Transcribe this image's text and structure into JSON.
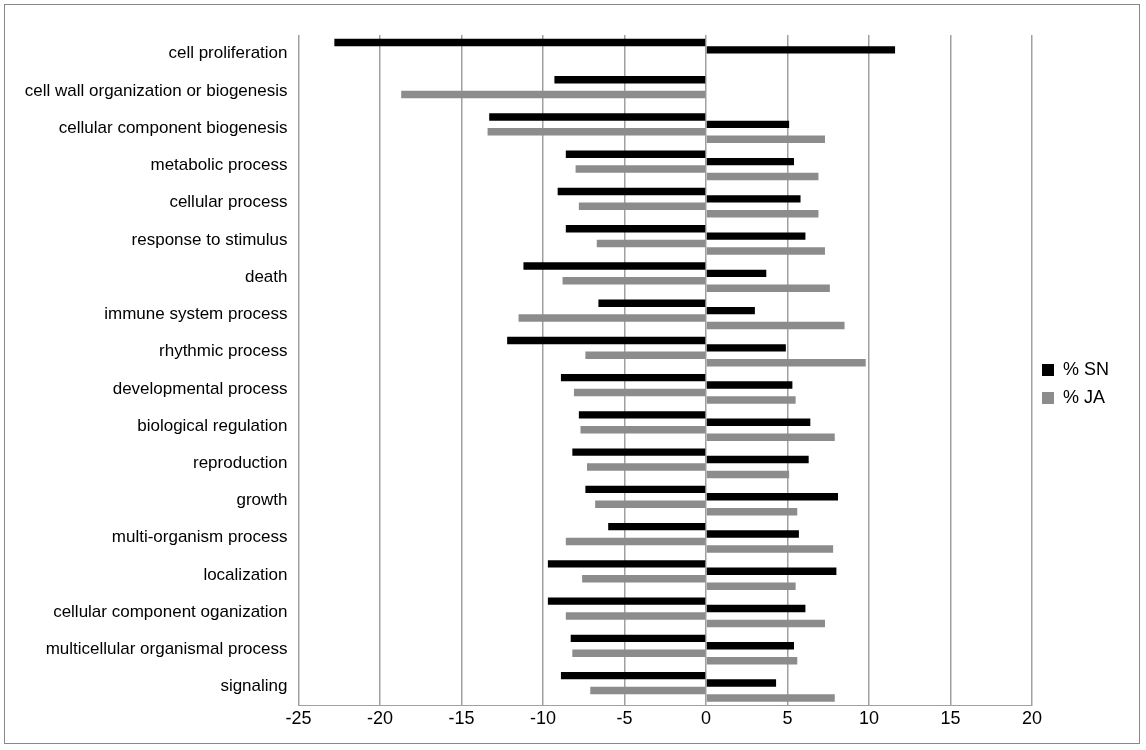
{
  "chart_data": {
    "type": "bar",
    "orientation": "horizontal",
    "categories": [
      "cell proliferation",
      "cell wall organization or biogenesis",
      "cellular component biogenesis",
      "metabolic process",
      "cellular process",
      "response to stimulus",
      "death",
      "immune system process",
      "rhythmic process",
      "developmental process",
      "biological regulation",
      "reproduction",
      "growth",
      "multi-organism process",
      "localization",
      "cellular component oganization",
      "multicellular organismal process",
      "signaling"
    ],
    "series": [
      {
        "name": "% SN",
        "color": "#000000",
        "values": [
          -22.8,
          -9.3,
          -13.3,
          -8.6,
          -9.1,
          -8.6,
          -11.2,
          -6.6,
          -12.2,
          -8.9,
          -7.8,
          -8.2,
          -7.4,
          -6.0,
          -9.7,
          -9.7,
          -8.3,
          -8.9
        ]
      },
      {
        "color": "#000000",
        "values": [
          11.6,
          0,
          5.1,
          5.4,
          5.8,
          6.1,
          3.7,
          3.0,
          4.9,
          5.3,
          6.4,
          6.3,
          8.1,
          5.7,
          8.0,
          6.1,
          5.4,
          4.3
        ]
      },
      {
        "name": "% JA",
        "color": "#8c8c8c",
        "values": [
          0,
          -18.7,
          -13.4,
          -8.0,
          -7.8,
          -6.7,
          -8.8,
          -11.5,
          -7.4,
          -8.1,
          -7.7,
          -7.3,
          -6.8,
          -8.6,
          -7.6,
          -8.6,
          -8.2,
          -7.1
        ]
      },
      {
        "color": "#8c8c8c",
        "values": [
          0,
          0,
          7.3,
          6.9,
          6.9,
          7.3,
          7.6,
          8.5,
          9.8,
          5.5,
          7.9,
          5.1,
          5.6,
          7.8,
          5.5,
          7.3,
          5.6,
          7.9
        ]
      }
    ],
    "xlim": [
      -25,
      20
    ],
    "xticks": [
      -25,
      -20,
      -15,
      -10,
      -5,
      0,
      5,
      10,
      15,
      20
    ],
    "grid": "x",
    "legend": "right"
  }
}
